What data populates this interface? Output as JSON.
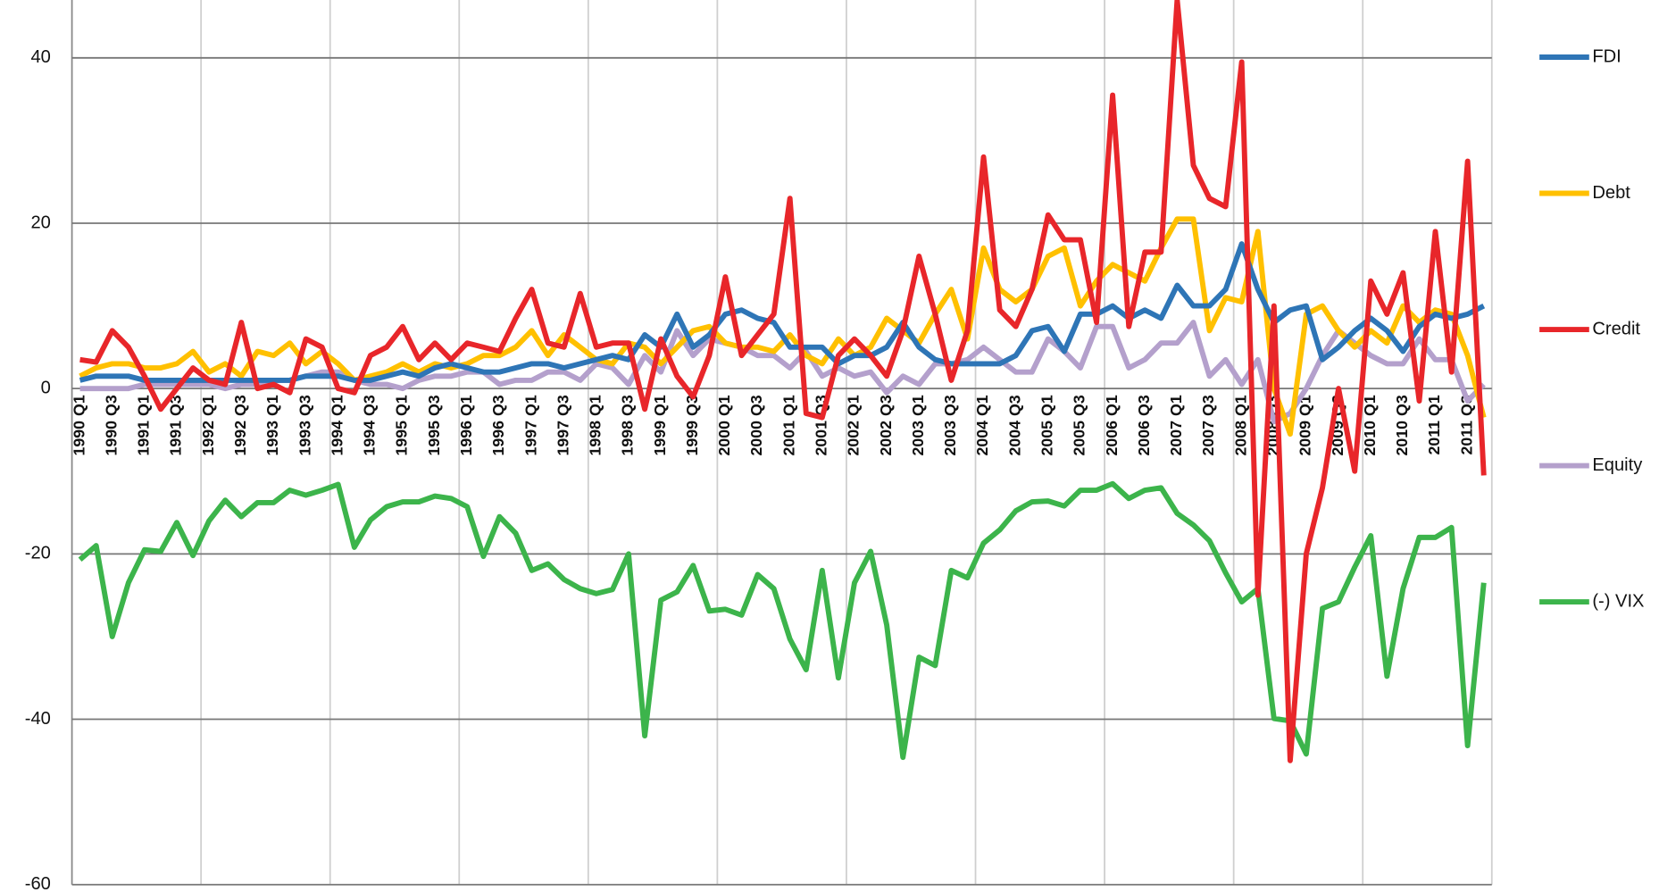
{
  "chart_data": {
    "type": "line",
    "categories": [
      "1990 Q1",
      null,
      "1990 Q3",
      null,
      "1991 Q1",
      null,
      "1991 Q3",
      null,
      "1992 Q1",
      null,
      "1992 Q3",
      null,
      "1993 Q1",
      null,
      "1993 Q3",
      null,
      "1994 Q1",
      null,
      "1994 Q3",
      null,
      "1995 Q1",
      null,
      "1995 Q3",
      null,
      "1996 Q1",
      null,
      "1996 Q3",
      null,
      "1997 Q1",
      null,
      "1997 Q3",
      null,
      "1998 Q1",
      null,
      "1998 Q3",
      null,
      "1999 Q1",
      null,
      "1999 Q3",
      null,
      "2000 Q1",
      null,
      "2000 Q3",
      null,
      "2001 Q1",
      null,
      "2001 Q3",
      null,
      "2002 Q1",
      null,
      "2002 Q3",
      null,
      "2003 Q1",
      null,
      "2003 Q3",
      null,
      "2004 Q1",
      null,
      "2004 Q3",
      null,
      "2005 Q1",
      null,
      "2005 Q3",
      null,
      "2006 Q1",
      null,
      "2006 Q3",
      null,
      "2007 Q1",
      null,
      "2007 Q3",
      null,
      "2008 Q1",
      null,
      "2008 Q3",
      null,
      "2009 Q1",
      null,
      "2009 Q3",
      null,
      "2010 Q1",
      null,
      "2010 Q3",
      null,
      "2011 Q1",
      null,
      "2011 Q3",
      null
    ],
    "series": [
      {
        "name": "FDI",
        "color": "#2e75b6",
        "values": [
          1,
          1.5,
          1.5,
          1.5,
          1,
          1,
          1,
          1,
          1,
          1,
          1,
          1,
          1,
          1,
          1.5,
          1.5,
          1.5,
          1,
          1,
          1.5,
          2,
          1.5,
          2.5,
          3,
          2.5,
          2,
          2,
          2.5,
          3,
          3,
          2.5,
          3,
          3.5,
          4,
          3.5,
          6.5,
          5,
          9,
          5,
          6.5,
          9,
          9.5,
          8.5,
          8,
          5,
          5,
          5,
          3,
          4,
          4,
          5,
          8,
          5,
          3.5,
          3,
          3,
          3,
          3,
          4,
          7,
          7.5,
          4.5,
          9,
          9,
          10,
          8.5,
          9.5,
          8.5,
          12.5,
          10,
          10,
          12,
          17.5,
          12,
          8,
          9.5,
          10,
          3.5,
          5,
          7,
          8.5,
          7,
          4.5,
          7.5,
          9,
          8.5,
          9,
          10
        ]
      },
      {
        "name": "Debt",
        "color": "#ffc000",
        "values": [
          1.5,
          2.5,
          3,
          3,
          2.5,
          2.5,
          3,
          4.5,
          2,
          3,
          1.5,
          4.5,
          4,
          5.5,
          3,
          4.5,
          3,
          1,
          1.5,
          2,
          3,
          2,
          3,
          2.5,
          3,
          4,
          4,
          5,
          7,
          4,
          6.5,
          5,
          3.5,
          3,
          5.5,
          5,
          3,
          5,
          7,
          7.5,
          5.5,
          5,
          5,
          4.5,
          6.5,
          4,
          3,
          6,
          4,
          5,
          8.5,
          7,
          5.5,
          9,
          12,
          6,
          17,
          12,
          10.5,
          12,
          16,
          17,
          10,
          13,
          15,
          14,
          13,
          17,
          20.5,
          20.5,
          7,
          11,
          10.5,
          19,
          0,
          -5.5,
          9,
          10,
          7,
          5,
          7,
          5.5,
          10,
          8,
          9.5,
          9,
          4,
          -3.5
        ]
      },
      {
        "name": "Credit",
        "color": "#e8262a",
        "values": [
          3.5,
          3.2,
          7,
          5,
          1.5,
          -2.5,
          0,
          2.5,
          1,
          0.5,
          8,
          0,
          0.5,
          -0.5,
          6,
          5,
          0,
          -0.5,
          4,
          5,
          7.5,
          3.5,
          5.5,
          3.5,
          5.5,
          5,
          4.5,
          8.5,
          12,
          5.5,
          5,
          11.5,
          5,
          5.5,
          5.5,
          -2.5,
          6,
          1.5,
          -1,
          4,
          13.5,
          4,
          6.5,
          9,
          23,
          -3,
          -3.5,
          4,
          6,
          4,
          1.5,
          7,
          16,
          9,
          1,
          7,
          28,
          9.5,
          7.5,
          12,
          21,
          18,
          18,
          8,
          35.5,
          7.5,
          16.5,
          16.5,
          47,
          27,
          23,
          22,
          39.5,
          -25,
          10,
          -45,
          -20,
          -12,
          0,
          -10,
          13,
          9,
          14,
          -1.5,
          19,
          2,
          27.5,
          -10.5
        ]
      },
      {
        "name": "Equity",
        "color": "#b4a0cc",
        "values": [
          0,
          0,
          0,
          0,
          0.5,
          0.5,
          0.5,
          0.5,
          0.5,
          0,
          0.5,
          0.5,
          1,
          1,
          1.5,
          2,
          2,
          1,
          0.5,
          0.5,
          0,
          1,
          1.5,
          1.5,
          2,
          2,
          0.5,
          1,
          1,
          2,
          2,
          1,
          3,
          2.5,
          0.5,
          4,
          2,
          7,
          4,
          6,
          5.5,
          5,
          4,
          4,
          2.5,
          4.5,
          1.5,
          2.5,
          1.5,
          2,
          -0.5,
          1.5,
          0.5,
          3,
          3,
          3.5,
          5,
          3.5,
          2,
          2,
          6,
          4.5,
          2.5,
          7.5,
          7.5,
          2.5,
          3.5,
          5.5,
          5.5,
          8,
          1.5,
          3.5,
          0.5,
          3.5,
          -4,
          -3,
          0,
          4,
          7,
          5.5,
          4,
          3,
          3,
          6,
          3.5,
          3.5,
          -1.5,
          0.5
        ]
      },
      {
        "name": "(-) VIX",
        "color": "#3cb44b",
        "values": [
          -20.7,
          -19,
          -30,
          -23.5,
          -19.5,
          -19.7,
          -16.2,
          -20.2,
          -16,
          -13.5,
          -15.5,
          -13.8,
          -13.8,
          -12.3,
          -12.9,
          -12.3,
          -11.6,
          -19.2,
          -15.9,
          -14.3,
          -13.7,
          -13.7,
          -13,
          -13.3,
          -14.3,
          -20.3,
          -15.5,
          -17.5,
          -22,
          -21.2,
          -23.1,
          -24.2,
          -24.8,
          -24.3,
          -20,
          -42,
          -25.6,
          -24.6,
          -21.4,
          -26.9,
          -26.7,
          -27.4,
          -22.5,
          -24.2,
          -30.3,
          -34,
          -22,
          -35,
          -23.5,
          -19.7,
          -28.6,
          -44.6,
          -32.5,
          -33.5,
          -22,
          -22.9,
          -18.7,
          -17.1,
          -14.8,
          -13.7,
          -13.6,
          -14.2,
          -12.3,
          -12.3,
          -11.5,
          -13.3,
          -12.3,
          -12,
          -15.1,
          -16.5,
          -18.4,
          -22.3,
          -25.8,
          -24.2,
          -39.9,
          -40.2,
          -44.2,
          -26.6,
          -25.8,
          -21.6,
          -17.8,
          -34.8,
          -24.2,
          -18,
          -18,
          -16.8,
          -43.2,
          -23.5
        ]
      }
    ],
    "ylim": [
      -60,
      47
    ],
    "yticks": [
      -60,
      -40,
      -20,
      0,
      20,
      40
    ],
    "grid": true,
    "legend": "right"
  }
}
